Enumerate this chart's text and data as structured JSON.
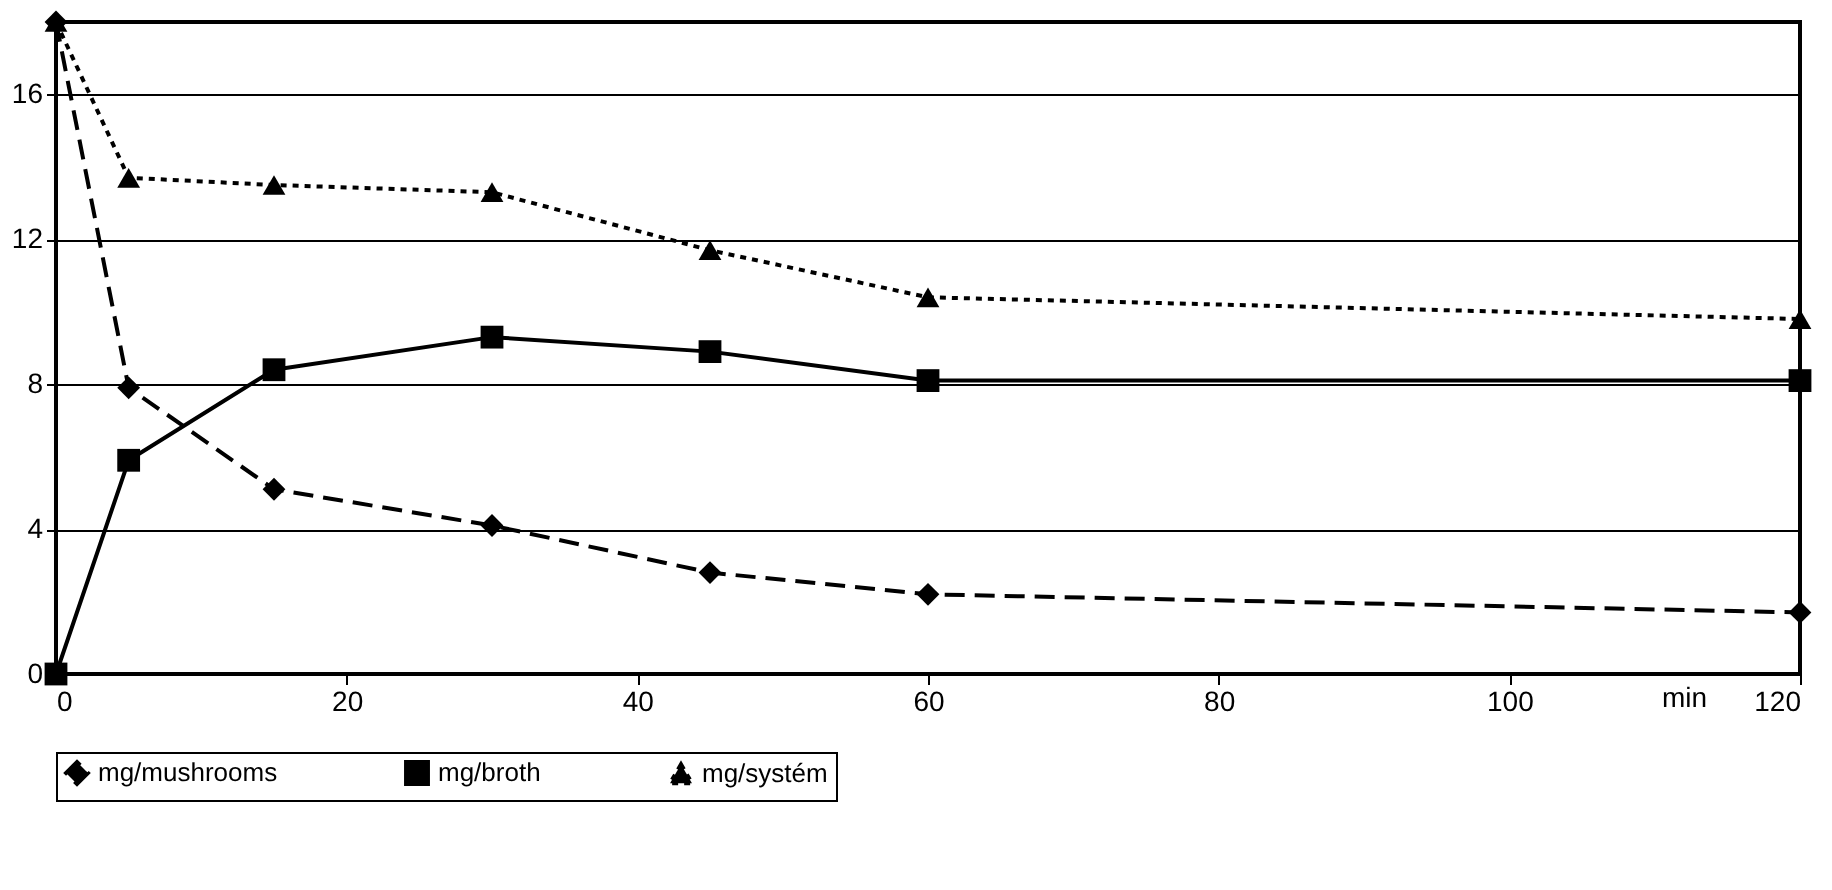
{
  "chart_data": {
    "type": "line",
    "xlabel": "min",
    "x": [
      0,
      5,
      15,
      30,
      45,
      60,
      120
    ],
    "series": [
      {
        "name": "mg/mushrooms",
        "color": "#000000",
        "marker": "diamond",
        "line_style": "dashed",
        "values": [
          18,
          7.9,
          5.1,
          4.1,
          2.8,
          2.2,
          1.7
        ]
      },
      {
        "name": "mg/broth",
        "color": "#000000",
        "marker": "square",
        "line_style": "solid",
        "values": [
          0,
          5.9,
          8.4,
          9.3,
          8.9,
          8.1,
          8.1
        ]
      },
      {
        "name": "mg/systém",
        "color": "#000000",
        "marker": "triangle",
        "line_style": "dotted",
        "values": [
          18,
          13.7,
          13.5,
          13.3,
          11.7,
          10.4,
          9.8
        ]
      }
    ],
    "xlim": [
      0,
      120
    ],
    "xticks": [
      0,
      20,
      40,
      60,
      80,
      100,
      120
    ],
    "ylim": [
      0,
      18
    ],
    "yticks": [
      0,
      4,
      8,
      12,
      16
    ],
    "grid": "y",
    "legend": "bottom"
  }
}
